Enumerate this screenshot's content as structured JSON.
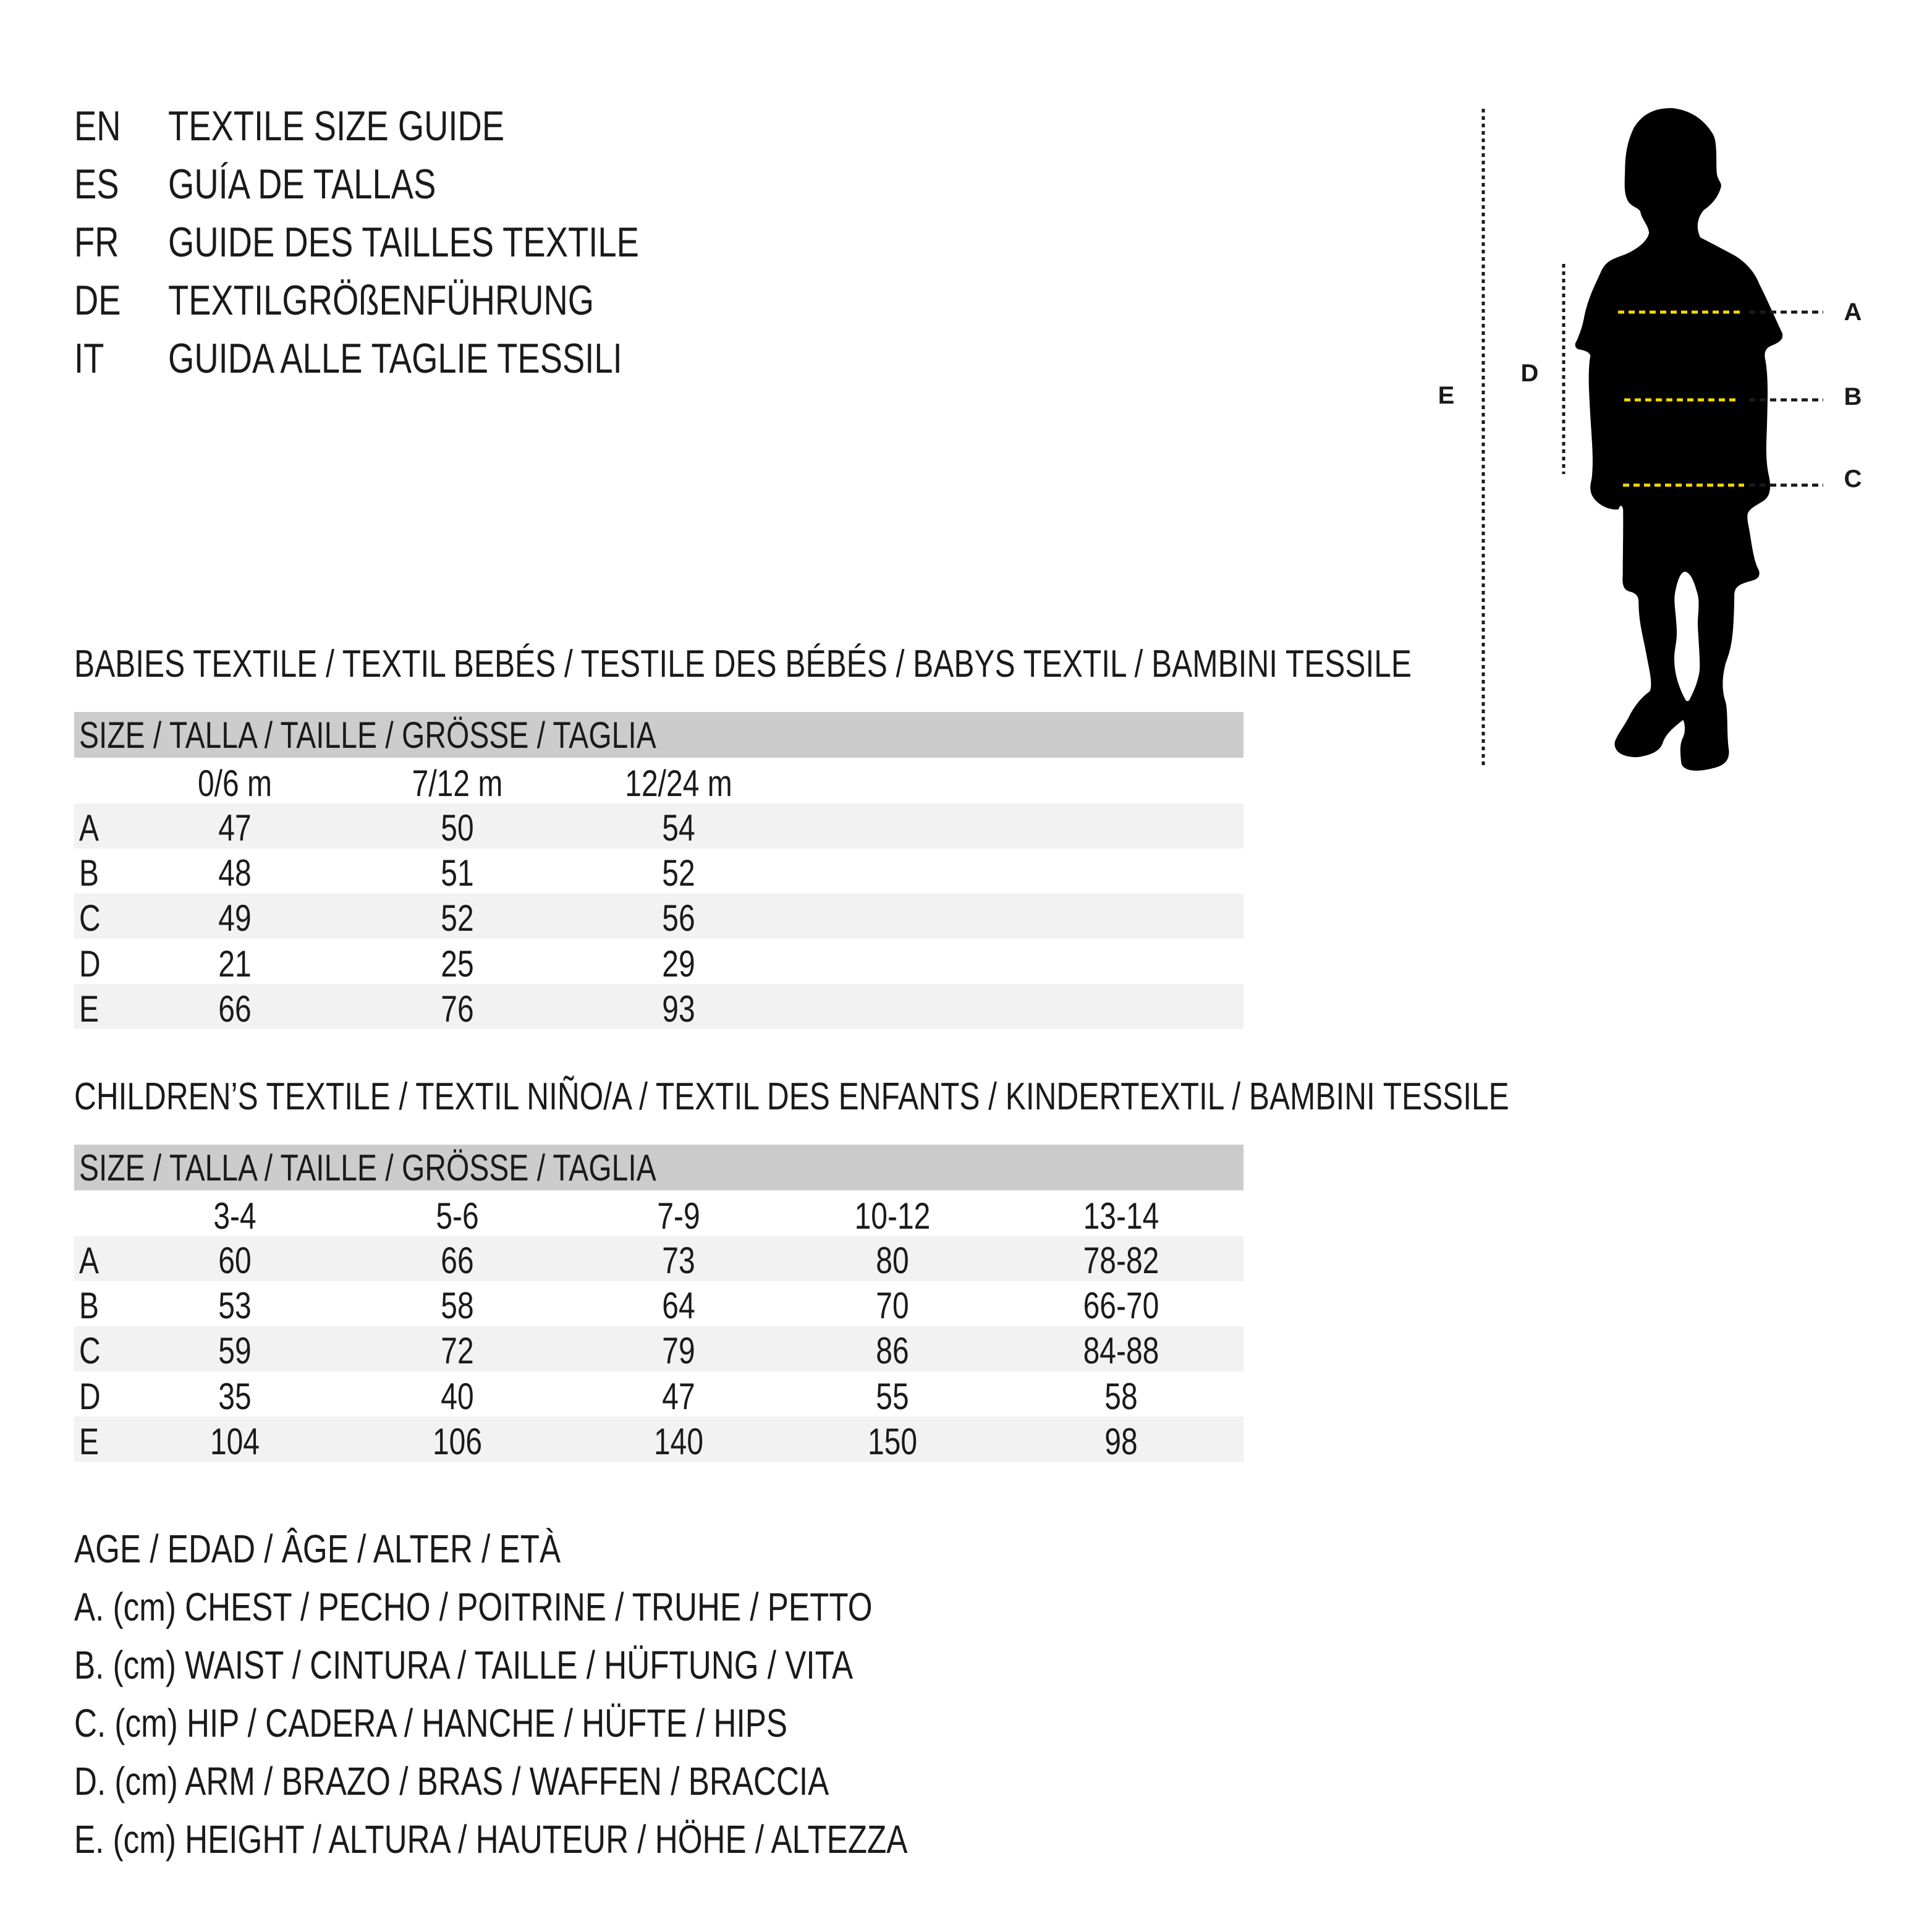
{
  "header": {
    "lines": [
      {
        "lang": "EN",
        "title": "TEXTILE SIZE GUIDE"
      },
      {
        "lang": "ES",
        "title": "GUÍA DE TALLAS"
      },
      {
        "lang": "FR",
        "title": "GUIDE DES TAILLES TEXTILE"
      },
      {
        "lang": "DE",
        "title": "TEXTILGRÖßENFÜHRUNG"
      },
      {
        "lang": "IT",
        "title": "GUIDA ALLE TAGLIE TESSILI"
      }
    ]
  },
  "diagram": {
    "labels": {
      "a": "A",
      "b": "B",
      "c": "C",
      "d": "D",
      "e": "E"
    },
    "colors": {
      "silhouette": "#000000",
      "measure_line": "#f5d800",
      "guide_line": "#1a1a1a"
    }
  },
  "babies": {
    "heading": "BABIES TEXTILE / TEXTIL BEBÉS / TESTILE DES BÉBÉS / BABYS TEXTIL / BAMBINI TESSILE",
    "size_header": "SIZE / TALLA / TAILLE / GRÖSSE / TAGLIA",
    "columns": [
      "0/6 m",
      "7/12 m",
      "12/24 m"
    ],
    "rows": [
      {
        "label": "A",
        "values": [
          "47",
          "50",
          "54"
        ]
      },
      {
        "label": "B",
        "values": [
          "48",
          "51",
          "52"
        ]
      },
      {
        "label": "C",
        "values": [
          "49",
          "52",
          "56"
        ]
      },
      {
        "label": "D",
        "values": [
          "21",
          "25",
          "29"
        ]
      },
      {
        "label": "E",
        "values": [
          "66",
          "76",
          "93"
        ]
      }
    ]
  },
  "children": {
    "heading": "CHILDREN’S TEXTILE / TEXTIL NIÑO/A / TEXTIL DES ENFANTS / KINDERTEXTIL / BAMBINI TESSILE",
    "size_header": "SIZE / TALLA / TAILLE / GRÖSSE / TAGLIA",
    "columns": [
      "3-4",
      "5-6",
      "7-9",
      "10-12",
      "13-14"
    ],
    "rows": [
      {
        "label": "A",
        "values": [
          "60",
          "66",
          "73",
          "80",
          "78-82"
        ]
      },
      {
        "label": "B",
        "values": [
          "53",
          "58",
          "64",
          "70",
          "66-70"
        ]
      },
      {
        "label": "C",
        "values": [
          "59",
          "72",
          "79",
          "86",
          "84-88"
        ]
      },
      {
        "label": "D",
        "values": [
          "35",
          "40",
          "47",
          "55",
          "58"
        ]
      },
      {
        "label": "E",
        "values": [
          "104",
          "106",
          "140",
          "150",
          "98"
        ]
      }
    ]
  },
  "legend": [
    "AGE / EDAD / ÂGE / ALTER / ETÀ",
    "A. (cm) CHEST / PECHO / POITRINE / TRUHE / PETTO",
    "B. (cm) WAIST / CINTURA / TAILLE / HÜFTUNG / VITA",
    "C. (cm) HIP / CADERA / HANCHE / HÜFTE / HIPS",
    "D. (cm) ARM / BRAZO / BRAS / WAFFEN / BRACCIA",
    "E. (cm) HEIGHT / ALTURA / HAUTEUR / HÖHE / ALTEZZA"
  ]
}
